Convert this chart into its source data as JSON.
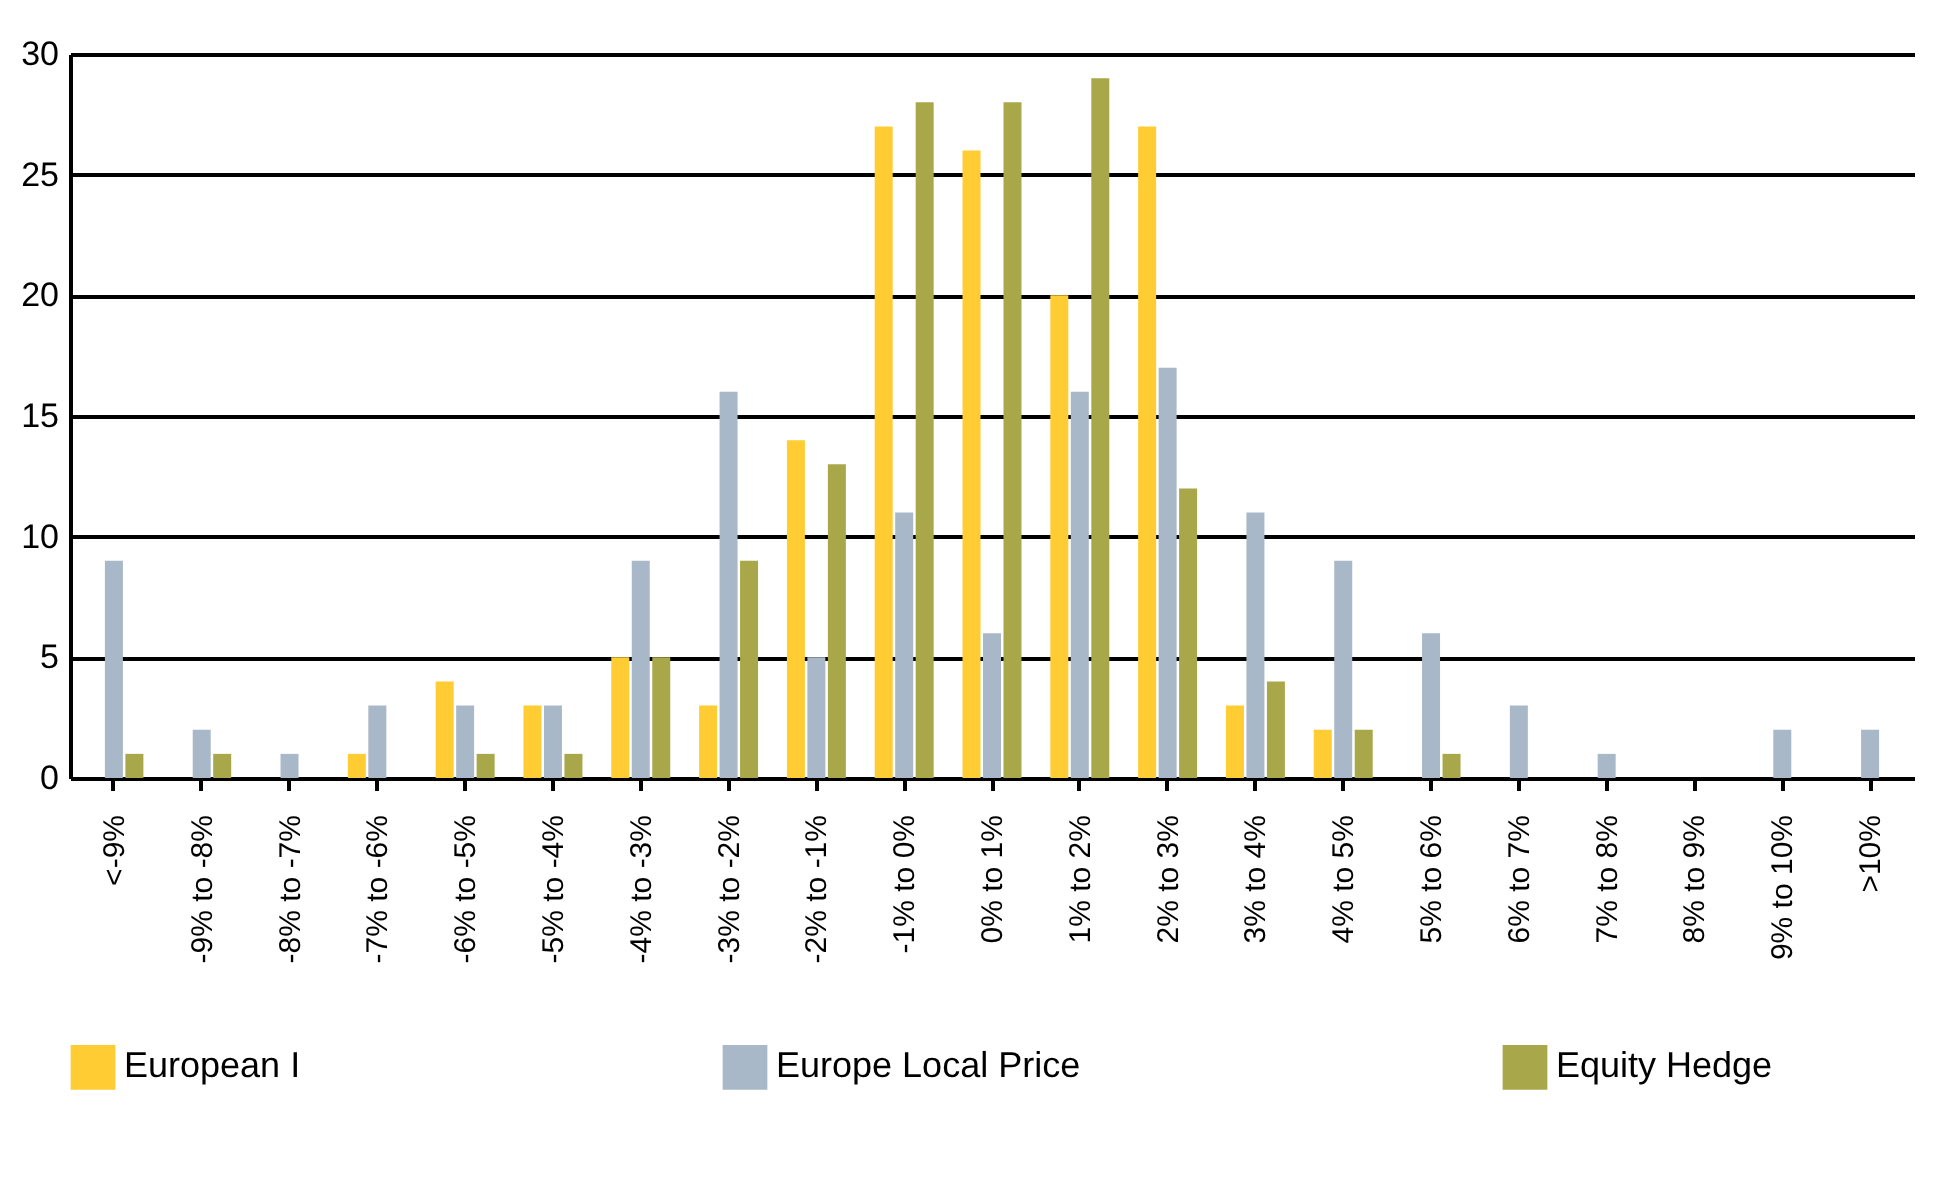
{
  "chart_data": {
    "type": "bar",
    "categories": [
      "<-9%",
      "-9% to -8%",
      "-8% to -7%",
      "-7% to -6%",
      "-6% to -5%",
      "-5% to -4%",
      "-4% to -3%",
      "-3% to -2%",
      "-2% to -1%",
      "-1% to 0%",
      "0% to 1%",
      "1% to 2%",
      "2% to 3%",
      "3% to 4%",
      "4% to 5%",
      "5% to 6%",
      "6% to 7%",
      "7% to 8%",
      "8% to 9%",
      "9% to 10%",
      ">10%"
    ],
    "series": [
      {
        "name": "European I",
        "color": "#ffcc33",
        "values": [
          0,
          0,
          0,
          1,
          4,
          3,
          5,
          3,
          14,
          27,
          26,
          20,
          27,
          3,
          2,
          0,
          0,
          0,
          0,
          0,
          0
        ]
      },
      {
        "name": "Europe Local Price",
        "color": "#a9b8c8",
        "values": [
          9,
          2,
          1,
          3,
          3,
          3,
          9,
          16,
          5,
          11,
          6,
          16,
          17,
          11,
          9,
          6,
          3,
          1,
          0,
          2,
          2
        ]
      },
      {
        "name": "Equity Hedge",
        "color": "#a8a84a",
        "values": [
          1,
          1,
          0,
          0,
          1,
          1,
          5,
          9,
          13,
          28,
          28,
          29,
          12,
          4,
          2,
          1,
          0,
          0,
          0,
          0,
          0
        ]
      }
    ],
    "ylim": [
      0,
      30
    ],
    "yticks": [
      0,
      5,
      10,
      15,
      20,
      25,
      30
    ],
    "grid": "y",
    "legend": "bottom"
  }
}
